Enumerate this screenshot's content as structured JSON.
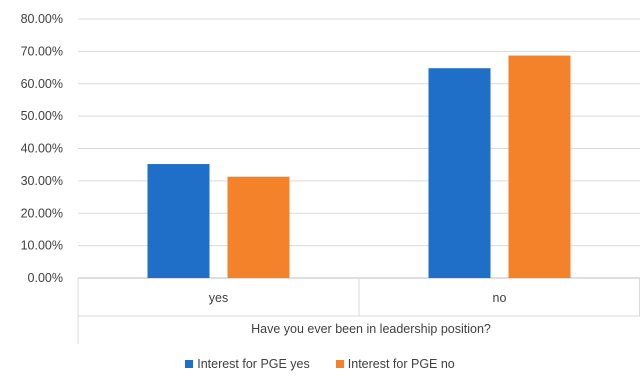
{
  "chart_data": {
    "type": "bar",
    "categories": [
      "yes",
      "no"
    ],
    "series": [
      {
        "name": "Interest for PGE yes",
        "values": [
          35.2,
          64.8
        ],
        "color": "#1f6fc8"
      },
      {
        "name": "Interest for PGE no",
        "values": [
          31.3,
          68.7
        ],
        "color": "#f4822a"
      }
    ],
    "y_ticks": [
      "0.00%",
      "10.00%",
      "20.00%",
      "30.00%",
      "40.00%",
      "50.00%",
      "60.00%",
      "70.00%",
      "80.00%"
    ],
    "ylim": [
      0,
      80
    ],
    "xlabel": "Have you ever been in leadership position?",
    "ylabel": "",
    "title": "",
    "grid": true,
    "legend_position": "bottom"
  }
}
